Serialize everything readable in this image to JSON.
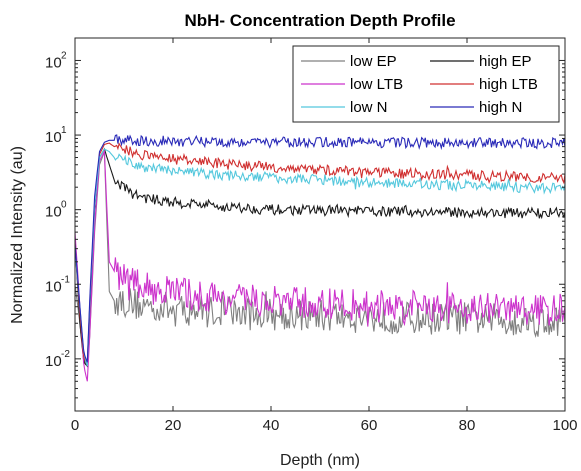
{
  "chart_data": {
    "type": "line",
    "title": "NbH- Concentration Depth Profile",
    "xlabel": "Depth (nm)",
    "ylabel": "Normalized Intensity (au)",
    "xlim": [
      0,
      100
    ],
    "ylim": [
      0.002,
      200
    ],
    "yscale": "log",
    "xticks": [
      0,
      20,
      40,
      60,
      80,
      100
    ],
    "yticks": [
      {
        "base": "10",
        "exp": "-2",
        "value": 0.01
      },
      {
        "base": "10",
        "exp": "-1",
        "value": 0.1
      },
      {
        "base": "10",
        "exp": "0",
        "value": 1
      },
      {
        "base": "10",
        "exp": "1",
        "value": 10
      },
      {
        "base": "10",
        "exp": "2",
        "value": 100
      }
    ],
    "grid": false,
    "legend_position": "top-right",
    "series": [
      {
        "name": "low EP",
        "color": "#808080",
        "x": [
          0,
          1,
          1.8,
          2.5,
          3,
          4,
          5,
          6,
          7,
          8,
          10,
          12,
          15,
          18,
          20,
          25,
          30,
          35,
          40,
          50,
          60,
          70,
          80,
          90,
          100
        ],
        "y": [
          0.1,
          0.03,
          0.01,
          0.008,
          0.02,
          0.5,
          4.0,
          6.0,
          0.08,
          0.06,
          0.06,
          0.055,
          0.05,
          0.05,
          0.045,
          0.045,
          0.042,
          0.04,
          0.04,
          0.038,
          0.036,
          0.035,
          0.035,
          0.033,
          0.032
        ]
      },
      {
        "name": "high EP",
        "color": "#1a1a1a",
        "x": [
          0,
          1,
          1.8,
          2.5,
          3,
          4,
          5,
          6,
          7,
          8,
          10,
          12,
          15,
          20,
          25,
          30,
          35,
          40,
          50,
          60,
          70,
          80,
          90,
          100
        ],
        "y": [
          0.35,
          0.03,
          0.009,
          0.008,
          0.04,
          1.0,
          5.0,
          6.5,
          4.0,
          2.5,
          2.0,
          1.6,
          1.4,
          1.25,
          1.2,
          1.1,
          1.05,
          1.0,
          0.98,
          0.95,
          0.93,
          0.92,
          0.9,
          0.9
        ]
      },
      {
        "name": "low LTB",
        "color": "#cc33cc",
        "x": [
          0,
          1,
          1.8,
          2.5,
          3,
          4,
          5,
          6,
          7,
          8,
          10,
          12,
          15,
          20,
          25,
          30,
          35,
          40,
          50,
          60,
          70,
          80,
          90,
          100
        ],
        "y": [
          0.5,
          0.05,
          0.008,
          0.005,
          0.02,
          0.6,
          4.5,
          6.0,
          0.2,
          0.15,
          0.12,
          0.1,
          0.09,
          0.08,
          0.07,
          0.065,
          0.06,
          0.058,
          0.055,
          0.052,
          0.05,
          0.048,
          0.046,
          0.045
        ]
      },
      {
        "name": "high LTB",
        "color": "#d03030",
        "x": [
          0,
          1,
          1.8,
          2.5,
          3,
          4,
          5,
          6,
          7,
          8,
          10,
          12,
          15,
          20,
          25,
          30,
          35,
          40,
          50,
          60,
          70,
          80,
          90,
          100
        ],
        "y": [
          0.35,
          0.04,
          0.01,
          0.009,
          0.05,
          1.2,
          5.5,
          7.5,
          7.8,
          7.0,
          6.5,
          5.8,
          5.2,
          4.8,
          4.4,
          4.1,
          3.9,
          3.7,
          3.4,
          3.2,
          3.0,
          2.9,
          2.8,
          2.6
        ]
      },
      {
        "name": "low N",
        "color": "#55c8dd",
        "x": [
          0,
          1,
          1.8,
          2.5,
          3,
          4,
          5,
          6,
          7,
          8,
          10,
          12,
          15,
          20,
          25,
          30,
          35,
          40,
          50,
          60,
          70,
          80,
          90,
          100
        ],
        "y": [
          0.3,
          0.05,
          0.012,
          0.008,
          0.05,
          1.1,
          5.0,
          6.5,
          6.0,
          5.0,
          4.5,
          4.0,
          3.6,
          3.3,
          3.1,
          2.9,
          2.8,
          2.7,
          2.5,
          2.3,
          2.2,
          2.1,
          2.0,
          1.9
        ]
      },
      {
        "name": "high N",
        "color": "#2a2ab8",
        "x": [
          0,
          1,
          1.8,
          2.5,
          3,
          4,
          5,
          6,
          7,
          8,
          10,
          12,
          15,
          20,
          25,
          30,
          35,
          40,
          50,
          60,
          70,
          80,
          90,
          100
        ],
        "y": [
          0.35,
          0.05,
          0.012,
          0.009,
          0.06,
          1.5,
          6.0,
          8.0,
          8.5,
          8.5,
          8.6,
          8.5,
          8.4,
          8.3,
          8.2,
          8.2,
          8.1,
          8.0,
          8.0,
          8.0,
          7.9,
          7.9,
          7.9,
          7.8
        ]
      }
    ]
  }
}
